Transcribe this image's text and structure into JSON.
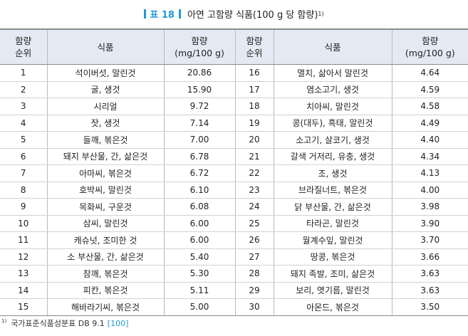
{
  "title": {
    "label": "표 18",
    "text": "아연 고함량 식품(100 g 당 함량)",
    "footnote_ref": "1)"
  },
  "colors": {
    "accent": "#1f9ad6",
    "header_bg": "#e3eaf3"
  },
  "table": {
    "columns": [
      "함량 순위",
      "식품",
      "함량 (mg/100 g)",
      "함량 순위",
      "식품",
      "함량 (mg/100 g)"
    ],
    "header": {
      "rank_line1": "함량",
      "rank_line2": "순위",
      "food": "식품",
      "amount_line1": "함량",
      "amount_line2": "(mg/100 g)"
    },
    "rows": [
      [
        "1",
        "석이버섯, 말린것",
        "20.86",
        "16",
        "멸치, 삶아서 말린것",
        "4.64"
      ],
      [
        "2",
        "굴, 생것",
        "15.90",
        "17",
        "염소고기, 생것",
        "4.59"
      ],
      [
        "3",
        "시리얼",
        "9.72",
        "18",
        "치아씨, 말린것",
        "4.58"
      ],
      [
        "4",
        "잣, 생것",
        "7.14",
        "19",
        "콩(대두), 흑태, 말린것",
        "4.49"
      ],
      [
        "5",
        "들깨, 볶은것",
        "7.00",
        "20",
        "소고기, 살코기, 생것",
        "4.40"
      ],
      [
        "6",
        "돼지 부산물, 간, 삶은것",
        "6.78",
        "21",
        "갈색 거저리, 유충, 생것",
        "4.34"
      ],
      [
        "7",
        "아마씨, 볶은것",
        "6.72",
        "22",
        "조, 생것",
        "4.13"
      ],
      [
        "8",
        "호박씨, 말린것",
        "6.10",
        "23",
        "브라질너트, 볶은것",
        "4.00"
      ],
      [
        "9",
        "목화씨, 구운것",
        "6.08",
        "24",
        "닭 부산물, 간, 삶은것",
        "3.98"
      ],
      [
        "10",
        "삼씨, 말린것",
        "6.00",
        "25",
        "타라곤, 말린것",
        "3.90"
      ],
      [
        "11",
        "캐슈넛, 조미한 것",
        "6.00",
        "26",
        "월계수잎, 말린것",
        "3.70"
      ],
      [
        "12",
        "소 부산물, 간, 삶은것",
        "5.40",
        "27",
        "땅콩, 볶은것",
        "3.66"
      ],
      [
        "13",
        "참깨, 볶은것",
        "5.30",
        "28",
        "돼지 족발, 조미, 삶은것",
        "3.63"
      ],
      [
        "14",
        "피칸, 볶은것",
        "5.11",
        "29",
        "보리, 엿기름, 말린것",
        "3.63"
      ],
      [
        "15",
        "해바라기씨, 볶은것",
        "5.00",
        "30",
        "아몬드, 볶은것",
        "3.50"
      ]
    ]
  },
  "footnote": {
    "marker": "1)",
    "text": "국가표준식품성분표 DB 9.1",
    "link": "[100]"
  }
}
